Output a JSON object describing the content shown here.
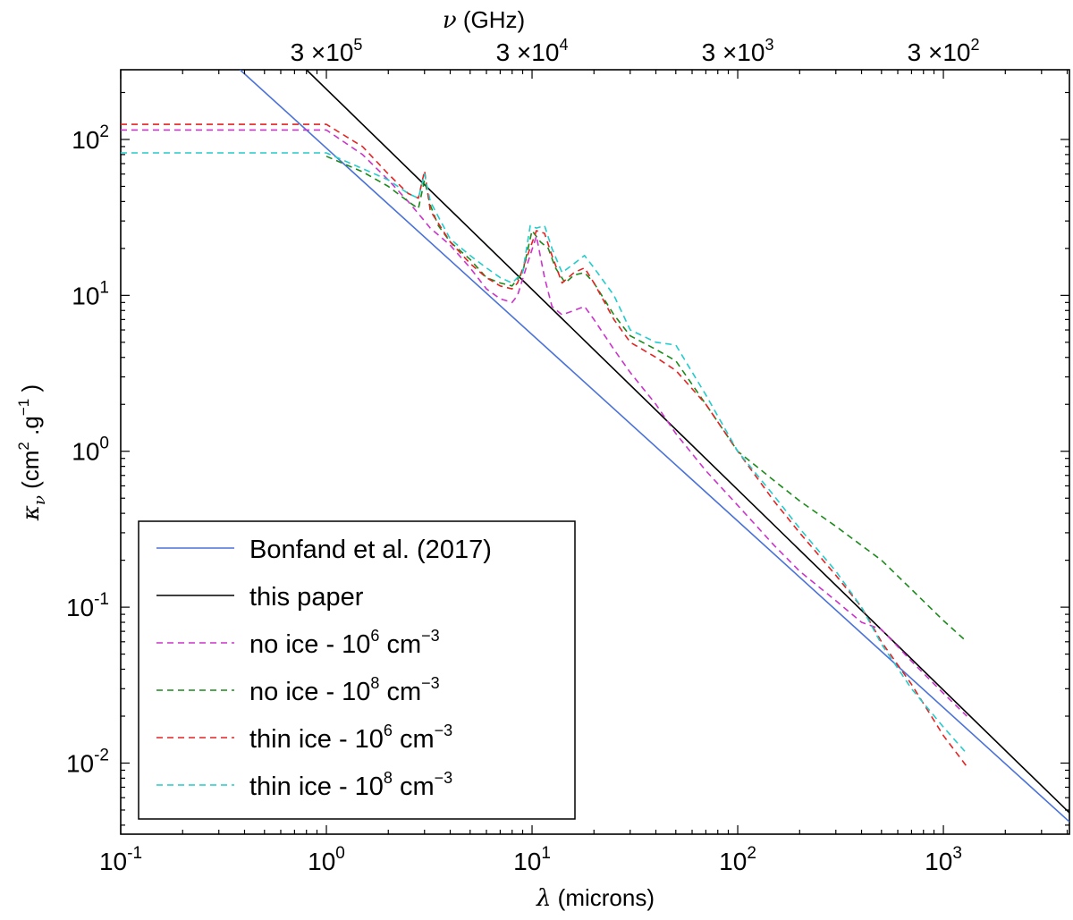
{
  "chart_data": {
    "type": "line",
    "title": "",
    "xscale": "log",
    "yscale": "log",
    "xlim": [
      0.1,
      4100
    ],
    "ylim": [
      0.0035,
      280
    ],
    "xlabel": {
      "symbol": "λ",
      "text": " (microns)"
    },
    "ylabel": {
      "symbol": "κ",
      "sub": "ν",
      "text_a": " (cm",
      "sup_a": "2",
      "text_b": " .g",
      "sup_b": "−1",
      "text_c": " )"
    },
    "top_axis_label": {
      "symbol": "ν",
      "text": " (GHz)"
    },
    "x_ticks": [
      {
        "value": 0.1,
        "base": "10",
        "exp": "-1"
      },
      {
        "value": 1,
        "base": "10",
        "exp": "0"
      },
      {
        "value": 10,
        "base": "10",
        "exp": "1"
      },
      {
        "value": 100,
        "base": "10",
        "exp": "2"
      },
      {
        "value": 1000,
        "base": "10",
        "exp": "3"
      }
    ],
    "y_ticks": [
      {
        "value": 0.01,
        "base": "10",
        "exp": "-2"
      },
      {
        "value": 0.1,
        "base": "10",
        "exp": "-1"
      },
      {
        "value": 1,
        "base": "10",
        "exp": "0"
      },
      {
        "value": 10,
        "base": "10",
        "exp": "1"
      },
      {
        "value": 100,
        "base": "10",
        "exp": "2"
      }
    ],
    "top_ticks": [
      {
        "wavelength": 1,
        "mant": "3 ×10",
        "exp": "5"
      },
      {
        "wavelength": 10,
        "mant": "3 ×10",
        "exp": "4"
      },
      {
        "wavelength": 100,
        "mant": "3 ×10",
        "exp": "3"
      },
      {
        "wavelength": 1000,
        "mant": "3 ×10",
        "exp": "2"
      }
    ],
    "legend": {
      "position": "lower-left"
    },
    "series": [
      {
        "name": "Bonfand et al. (2017)",
        "legend": {
          "text": "Bonfand et al. (2017)"
        },
        "color": "#4a72d8",
        "dash": "solid",
        "x": [
          0.38,
          4100
        ],
        "y": [
          280,
          0.0042
        ]
      },
      {
        "name": "this paper",
        "legend": {
          "text": "this paper"
        },
        "color": "#000000",
        "dash": "solid",
        "x": [
          0.8,
          4100
        ],
        "y": [
          280,
          0.0048
        ]
      },
      {
        "name": "no ice - 10^6 cm^-3",
        "legend": {
          "pre": "no ice - 10",
          "sup": "6",
          "post": " cm",
          "sup2": "−3"
        },
        "color": "#cc33cc",
        "dash": "dashed",
        "x": [
          0.1,
          1.0,
          1.5,
          2.0,
          2.5,
          3.0,
          3.2,
          4.0,
          5.0,
          6.0,
          7.0,
          8.0,
          8.5,
          9.5,
          10.5,
          11.5,
          12.5,
          14.0,
          16.0,
          18.0,
          20.0,
          25.0,
          30.0,
          40.0,
          50.0,
          70.0,
          100.0,
          150.0,
          200.0,
          300.0,
          400.0,
          500.0,
          700.0,
          1000.0,
          1300.0
        ],
        "y": [
          115,
          115,
          80,
          55,
          40,
          30,
          27,
          21,
          15,
          11,
          9.5,
          9.0,
          10.0,
          16,
          24,
          13,
          8.5,
          7.5,
          8.0,
          8.5,
          7.0,
          4.5,
          3.2,
          2.0,
          1.3,
          0.75,
          0.45,
          0.25,
          0.17,
          0.11,
          0.08,
          0.072,
          0.045,
          0.028,
          0.02
        ]
      },
      {
        "name": "no ice - 10^8 cm^-3",
        "legend": {
          "pre": "no ice - 10",
          "sup": "8",
          "post": " cm",
          "sup2": "−3"
        },
        "color": "#1a8a1a",
        "dash": "dashed",
        "x": [
          1.0,
          1.5,
          2.0,
          2.5,
          2.8,
          3.0,
          3.2,
          3.5,
          4.0,
          5.0,
          6.0,
          7.0,
          8.0,
          9.0,
          10.0,
          11.0,
          12.0,
          13.0,
          14.5,
          16.0,
          18.0,
          20.0,
          25.0,
          30.0,
          40.0,
          50.0,
          70.0,
          100.0,
          150.0,
          200.0,
          300.0,
          500.0,
          700.0,
          1000.0,
          1300.0
        ],
        "y": [
          78,
          62,
          50,
          40,
          36,
          55,
          38,
          28,
          22,
          17,
          13,
          12,
          11.5,
          14,
          26,
          22,
          20,
          15,
          12,
          13.5,
          14,
          12,
          7.5,
          5.5,
          4.5,
          3.8,
          2.0,
          1.0,
          0.65,
          0.48,
          0.33,
          0.2,
          0.13,
          0.082,
          0.06
        ]
      },
      {
        "name": "thin ice - 10^6 cm^-3",
        "legend": {
          "pre": "thin ice - 10",
          "sup": "6",
          "post": " cm",
          "sup2": "−3"
        },
        "color": "#e52222",
        "dash": "dashed",
        "x": [
          0.1,
          1.0,
          1.5,
          2.0,
          2.5,
          2.8,
          3.0,
          3.2,
          4.0,
          5.0,
          6.0,
          7.0,
          8.0,
          8.5,
          9.5,
          10.5,
          11.5,
          12.5,
          14.0,
          16.0,
          18.0,
          20.0,
          25.0,
          30.0,
          40.0,
          50.0,
          70.0,
          100.0,
          150.0,
          200.0,
          300.0,
          400.0,
          500.0,
          700.0,
          1000.0,
          1300.0
        ],
        "y": [
          125,
          125,
          90,
          60,
          45,
          42,
          63,
          35,
          22,
          16,
          13,
          11.5,
          11,
          12,
          18,
          26,
          25,
          18,
          12,
          14,
          15,
          12,
          7.0,
          5.0,
          4.0,
          3.3,
          2.0,
          1.0,
          0.48,
          0.3,
          0.16,
          0.1,
          0.06,
          0.032,
          0.015,
          0.0095
        ]
      },
      {
        "name": "thin ice - 10^8 cm^-3",
        "legend": {
          "pre": "thin ice - 10",
          "sup": "8",
          "post": " cm",
          "sup2": "−3"
        },
        "color": "#22cccc",
        "dash": "dashed",
        "x": [
          0.1,
          1.0,
          1.5,
          2.0,
          2.5,
          2.8,
          3.0,
          3.2,
          4.0,
          5.0,
          6.0,
          7.0,
          8.0,
          9.0,
          9.8,
          10.5,
          11.5,
          12.5,
          14.0,
          16.0,
          18.0,
          20.0,
          25.0,
          30.0,
          40.0,
          50.0,
          70.0,
          100.0,
          150.0,
          200.0,
          300.0,
          400.0,
          500.0,
          700.0,
          1000.0,
          1300.0
        ],
        "y": [
          82,
          82,
          65,
          55,
          45,
          42,
          60,
          40,
          23,
          18,
          15,
          13,
          12,
          14,
          28,
          27,
          28,
          20,
          14,
          16,
          18,
          15,
          10,
          6.0,
          5.0,
          4.8,
          2.3,
          1.0,
          0.52,
          0.32,
          0.17,
          0.1,
          0.058,
          0.03,
          0.017,
          0.0115
        ]
      }
    ]
  }
}
